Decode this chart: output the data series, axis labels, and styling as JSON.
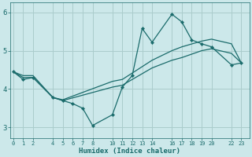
{
  "xlabel": "Humidex (Indice chaleur)",
  "bg_color": "#cce8ea",
  "grid_color": "#aacccc",
  "line_color": "#1a6b6b",
  "line1_jagged": {
    "x": [
      0,
      1,
      2,
      4,
      5,
      6,
      7,
      8,
      10,
      11,
      12,
      13,
      14,
      16,
      17,
      18,
      19,
      20,
      22,
      23
    ],
    "y": [
      4.45,
      4.25,
      4.3,
      3.78,
      3.7,
      3.62,
      3.5,
      3.05,
      3.33,
      4.05,
      4.35,
      5.58,
      5.22,
      5.95,
      5.75,
      5.28,
      5.18,
      5.1,
      4.63,
      4.68
    ]
  },
  "line2_smooth_low": {
    "x": [
      0,
      1,
      2,
      4,
      5,
      10,
      11,
      14,
      16,
      17,
      19,
      20,
      22,
      23
    ],
    "y": [
      4.45,
      4.3,
      4.3,
      3.78,
      3.7,
      4.05,
      4.1,
      4.55,
      4.75,
      4.82,
      5.0,
      5.05,
      4.93,
      4.68
    ]
  },
  "line3_smooth_high": {
    "x": [
      0,
      1,
      2,
      4,
      5,
      10,
      11,
      14,
      16,
      17,
      19,
      20,
      22,
      23
    ],
    "y": [
      4.45,
      4.35,
      4.35,
      3.78,
      3.72,
      4.2,
      4.25,
      4.75,
      5.0,
      5.1,
      5.25,
      5.3,
      5.18,
      4.68
    ]
  },
  "xlim": [
    -0.3,
    23.8
  ],
  "ylim": [
    2.72,
    6.25
  ],
  "yticks": [
    3,
    4,
    5,
    6
  ],
  "xticks": [
    0,
    1,
    2,
    4,
    5,
    6,
    7,
    8,
    10,
    11,
    12,
    13,
    14,
    16,
    17,
    18,
    19,
    20,
    22,
    23
  ]
}
